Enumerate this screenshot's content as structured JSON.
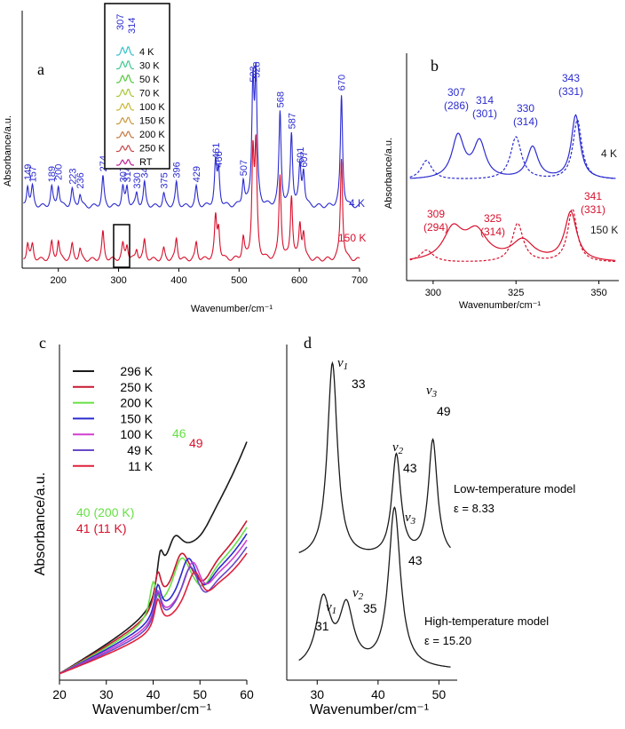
{
  "colors": {
    "blue": "#2b2bd0",
    "red": "#d8102c",
    "black": "#1a1a1a",
    "green": "#66e044",
    "magenta": "#d02cd0",
    "purple": "#6a4ac8"
  },
  "chart_data": [
    {
      "panel_label": "a",
      "type": "line",
      "xlabel": "Wavenumber/cm⁻¹",
      "ylabel": "Absorbance/a.u.",
      "xlim": [
        140,
        700
      ],
      "xticks": [
        "200",
        "300",
        "400",
        "500",
        "600",
        "700"
      ],
      "xtick_values": [
        200,
        300,
        400,
        500,
        600,
        700
      ],
      "series": [
        {
          "name": "4 K",
          "color": "#2b2bd0",
          "offset": 1.0,
          "peaks": [
            [
              149,
              0.5
            ],
            [
              157,
              0.45
            ],
            [
              189,
              0.45
            ],
            [
              200,
              0.5
            ],
            [
              223,
              0.4
            ],
            [
              236,
              0.3
            ],
            [
              274,
              0.7
            ],
            [
              307,
              0.45
            ],
            [
              314,
              0.45
            ],
            [
              330,
              0.3
            ],
            [
              343,
              0.55
            ],
            [
              375,
              0.3
            ],
            [
              396,
              0.55
            ],
            [
              429,
              0.45
            ],
            [
              461,
              1.0
            ],
            [
              466,
              0.8
            ],
            [
              507,
              0.6
            ],
            [
              523,
              2.8
            ],
            [
              528,
              2.9
            ],
            [
              568,
              2.2
            ],
            [
              587,
              1.7
            ],
            [
              601,
              0.9
            ],
            [
              607,
              0.8
            ],
            [
              670,
              2.6
            ]
          ]
        },
        {
          "name": "150 K",
          "color": "#d8102c",
          "offset": 0.0,
          "peaks": [
            [
              149,
              0.4
            ],
            [
              157,
              0.35
            ],
            [
              189,
              0.4
            ],
            [
              200,
              0.45
            ],
            [
              223,
              0.35
            ],
            [
              236,
              0.25
            ],
            [
              274,
              0.65
            ],
            [
              307,
              0.35
            ],
            [
              314,
              0.35
            ],
            [
              330,
              0.25
            ],
            [
              343,
              0.45
            ],
            [
              375,
              0.25
            ],
            [
              396,
              0.5
            ],
            [
              429,
              0.4
            ],
            [
              461,
              0.95
            ],
            [
              466,
              0.7
            ],
            [
              507,
              0.5
            ],
            [
              523,
              2.4
            ],
            [
              528,
              2.5
            ],
            [
              568,
              2.0
            ],
            [
              587,
              1.5
            ],
            [
              601,
              0.8
            ],
            [
              607,
              0.6
            ],
            [
              670,
              2.4
            ]
          ]
        }
      ],
      "peak_labels": [
        {
          "text": "149",
          "x": 149
        },
        {
          "text": "157",
          "x": 157
        },
        {
          "text": "189",
          "x": 189
        },
        {
          "text": "200",
          "x": 200
        },
        {
          "text": "223",
          "x": 223
        },
        {
          "text": "236",
          "x": 236
        },
        {
          "text": "274",
          "x": 274
        },
        {
          "text": "307",
          "x": 307
        },
        {
          "text": "314",
          "x": 314
        },
        {
          "text": "330",
          "x": 330
        },
        {
          "text": "343",
          "x": 343
        },
        {
          "text": "375",
          "x": 375
        },
        {
          "text": "396",
          "x": 396
        },
        {
          "text": "429",
          "x": 429
        },
        {
          "text": "461",
          "x": 461
        },
        {
          "text": "466",
          "x": 466
        },
        {
          "text": "507",
          "x": 507
        },
        {
          "text": "523",
          "x": 523
        },
        {
          "text": "528",
          "x": 528
        },
        {
          "text": "568",
          "x": 568
        },
        {
          "text": "587",
          "x": 587
        },
        {
          "text": "601",
          "x": 601
        },
        {
          "text": "607",
          "x": 607
        },
        {
          "text": "670",
          "x": 670
        }
      ],
      "series_labels": [
        "4 K",
        "150 K"
      ],
      "inset": {
        "peak_labels": [
          "307",
          "314"
        ],
        "legend": [
          {
            "name": "4 K",
            "color": "#38c0c8"
          },
          {
            "name": "30 K",
            "color": "#40c890"
          },
          {
            "name": "50 K",
            "color": "#58c840"
          },
          {
            "name": "70 K",
            "color": "#a8c838"
          },
          {
            "name": "100 K",
            "color": "#c8b838"
          },
          {
            "name": "150 K",
            "color": "#c89840"
          },
          {
            "name": "200 K",
            "color": "#c87840"
          },
          {
            "name": "250 K",
            "color": "#c84848"
          },
          {
            "name": "RT",
            "color": "#c02090"
          }
        ]
      }
    },
    {
      "panel_label": "b",
      "type": "line",
      "xlabel": "Wavenumber/cm⁻¹",
      "ylabel": "Absorbance/a.u.",
      "xlim": [
        292,
        356
      ],
      "xticks": [
        "300",
        "325",
        "350"
      ],
      "xtick_values": [
        300,
        325,
        350
      ],
      "series": [
        {
          "name": "4 K",
          "style": "solid",
          "color": "#2b2bd0",
          "peaks": [
            [
              307.5,
              1.0,
              2.2
            ],
            [
              314,
              0.85,
              2.2
            ],
            [
              330,
              0.75,
              2.0
            ],
            [
              343,
              1.5,
              1.6
            ]
          ]
        },
        {
          "name": "4 K",
          "style": "dashed",
          "color": "#2b2bd0",
          "peaks": [
            [
              298,
              0.45,
              2.0
            ],
            [
              325,
              1.0,
              2.0
            ],
            [
              343.5,
              1.4,
              1.6
            ]
          ]
        },
        {
          "name": "150 K",
          "style": "solid",
          "color": "#d8102c",
          "peaks": [
            [
              306,
              0.75,
              3.5
            ],
            [
              313,
              0.7,
              4.0
            ],
            [
              327,
              0.5,
              4.0
            ],
            [
              341.5,
              1.2,
              2.2
            ]
          ]
        },
        {
          "name": "150 K",
          "style": "dashed",
          "color": "#d8102c",
          "peaks": [
            [
              298,
              0.3,
              2.5
            ],
            [
              325.5,
              0.95,
              2.0
            ],
            [
              342,
              1.3,
              1.7
            ]
          ]
        }
      ],
      "annotations": [
        {
          "text": "307",
          "sub": "(286)",
          "color": "#2b2bd0",
          "x": 307
        },
        {
          "text": "314",
          "sub": "(301)",
          "color": "#2b2bd0",
          "x": 314
        },
        {
          "text": "330",
          "sub": "(314)",
          "color": "#2b2bd0",
          "x": 330
        },
        {
          "text": "343",
          "sub": "(331)",
          "color": "#2b2bd0",
          "x": 343
        },
        {
          "text": "309",
          "sub": "(294)",
          "color": "#d8102c",
          "x": 309
        },
        {
          "text": "325",
          "sub": "(314)",
          "color": "#d8102c",
          "x": 325
        },
        {
          "text": "341",
          "sub": "(331)",
          "color": "#d8102c",
          "x": 341
        }
      ],
      "series_labels": [
        "4 K",
        "150 K"
      ]
    },
    {
      "panel_label": "c",
      "type": "line",
      "xlabel": "Wavenumber/cm⁻¹",
      "ylabel": "Absorbance/a.u.",
      "xlim": [
        20,
        60
      ],
      "xticks": [
        "20",
        "30",
        "40",
        "50",
        "60"
      ],
      "xtick_values": [
        20,
        30,
        40,
        50,
        60
      ],
      "legend": [
        {
          "name": "296 K",
          "color": "#1a1a1a"
        },
        {
          "name": "250 K",
          "color": "#c81830"
        },
        {
          "name": "200 K",
          "color": "#66e044"
        },
        {
          "name": "150 K",
          "color": "#2b2bd0"
        },
        {
          "name": "100 K",
          "color": "#d040d0"
        },
        {
          "name": "49 K",
          "color": "#6a4ac8"
        },
        {
          "name": "11 K",
          "color": "#e0203c"
        }
      ],
      "annotations": [
        {
          "text": "46",
          "color": "#66e044"
        },
        {
          "text": "49",
          "color": "#d8102c"
        },
        {
          "text": "40 (200 K)",
          "color": "#66e044"
        },
        {
          "text": "41 (11 K)",
          "color": "#d8102c"
        }
      ]
    },
    {
      "panel_label": "d",
      "type": "line",
      "xlabel": "Wavenumber/cm⁻¹",
      "xlim": [
        25,
        53
      ],
      "xticks": [
        "30",
        "40",
        "50"
      ],
      "xtick_values": [
        30,
        40,
        50
      ],
      "series": [
        {
          "name": "Low-temperature model",
          "peaks": [
            [
              32.5,
              1.0,
              1.0
            ],
            [
              43,
              0.52,
              0.9
            ],
            [
              49,
              0.6,
              0.9
            ]
          ]
        },
        {
          "name": "High-temperature model",
          "peaks": [
            [
              31,
              0.4,
              1.4
            ],
            [
              34.8,
              0.35,
              1.4
            ],
            [
              42.7,
              0.95,
              1.2
            ]
          ]
        }
      ],
      "mode_labels": [
        {
          "mode": "ν",
          "sub": "1",
          "value": "33"
        },
        {
          "mode": "ν",
          "sub": "2",
          "value": "43"
        },
        {
          "mode": "ν",
          "sub": "3",
          "value": "49"
        },
        {
          "mode": "ν",
          "sub": "1",
          "value": "31"
        },
        {
          "mode": "ν",
          "sub": "2",
          "value": "35"
        },
        {
          "mode": "ν",
          "sub": "3",
          "value": "43"
        }
      ],
      "model_labels": [
        {
          "title": "Low-temperature model",
          "eps": "ε = 8.33"
        },
        {
          "title": "High-temperature model",
          "eps": "ε = 15.20"
        }
      ]
    }
  ]
}
